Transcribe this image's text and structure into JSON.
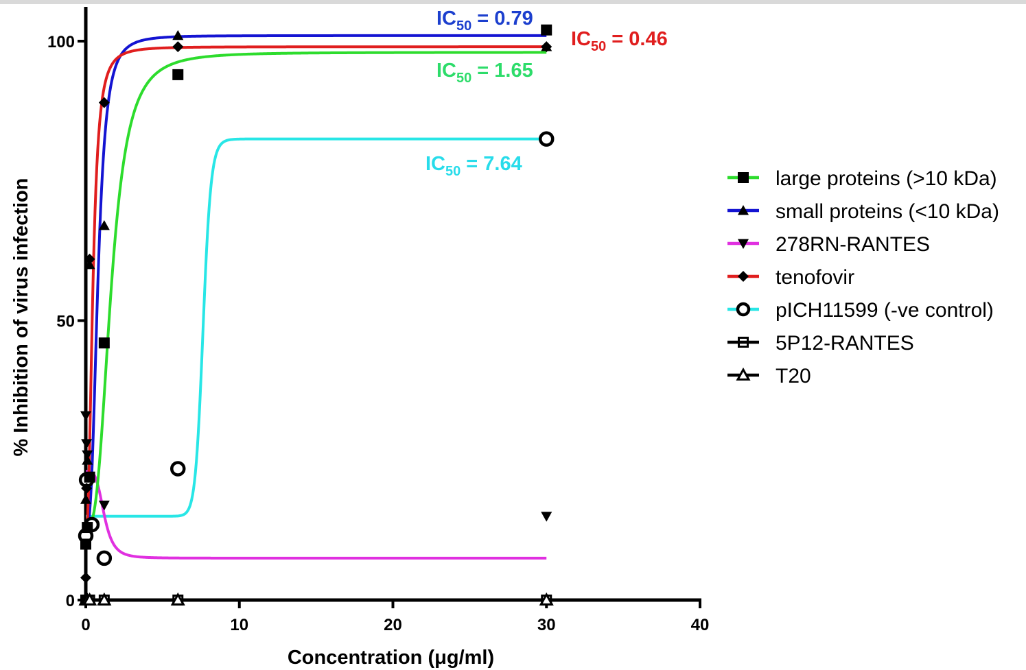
{
  "chart_data": {
    "type": "scatter",
    "title": "",
    "xlabel": "Concentration (μg/ml)",
    "ylabel": "% Inhibition of virus infection",
    "xlim": [
      0,
      40
    ],
    "ylim": [
      0,
      100
    ],
    "xticks": [
      0,
      10,
      20,
      30,
      40
    ],
    "yticks": [
      0,
      50,
      100
    ],
    "grid": false,
    "legend_position": "right",
    "series": [
      {
        "name": "large proteins (>10 kDa)",
        "marker": "filled-square",
        "color": "#2ddc2d",
        "x": [
          0,
          0.1,
          0.25,
          1.2,
          6,
          30
        ],
        "y": [
          10,
          13,
          22,
          46,
          94,
          102
        ],
        "curve": {
          "bottom": 13,
          "top": 98,
          "ic50": 1.65,
          "hill": 3
        }
      },
      {
        "name": "small proteins (<10 kDa)",
        "marker": "filled-triangle-up",
        "color": "#1414d2",
        "x": [
          0,
          0.1,
          0.25,
          1.2,
          6,
          30
        ],
        "y": [
          18,
          25,
          60,
          67,
          101,
          99
        ],
        "curve": {
          "bottom": 13,
          "top": 101,
          "ic50": 0.79,
          "hill": 3
        }
      },
      {
        "name": "278RN-RANTES",
        "marker": "filled-triangle-down",
        "color": "#e030e0",
        "x": [
          0,
          0.05,
          0.1,
          1.2,
          30
        ],
        "y": [
          33,
          28,
          26,
          17,
          15
        ],
        "curve": {
          "bottom": 7.5,
          "top": 23,
          "ic50": 1.2,
          "hill": -4
        }
      },
      {
        "name": "tenofovir",
        "marker": "filled-diamond",
        "color": "#e01e1e",
        "x": [
          0,
          0.05,
          0.25,
          1.2,
          6,
          30
        ],
        "y": [
          4,
          20,
          61,
          89,
          99,
          99
        ],
        "curve": {
          "bottom": 12,
          "top": 99,
          "ic50": 0.46,
          "hill": 2.5
        }
      },
      {
        "name": "pICH11599 (-ve control)",
        "marker": "open-circle",
        "color": "#28e6e6",
        "x": [
          0,
          0.05,
          0.4,
          1.2,
          6,
          30
        ],
        "y": [
          11.5,
          21.5,
          13.5,
          7.5,
          23.5,
          82.5
        ],
        "curve": {
          "bottom": 15,
          "top": 82.5,
          "ic50": 7.64,
          "hill": 30
        }
      },
      {
        "name": "5P12-RANTES",
        "marker": "open-square",
        "color": "#000000",
        "x": [
          0,
          0.1,
          0.25,
          1.2,
          6,
          30
        ],
        "y": [
          0,
          0,
          0,
          0,
          0,
          0
        ]
      },
      {
        "name": "T20",
        "marker": "open-triangle-up",
        "color": "#000000",
        "x": [
          0,
          0.1,
          0.25,
          1.2,
          6,
          30
        ],
        "y": [
          0,
          0,
          0,
          0,
          0,
          0
        ]
      }
    ],
    "annotations": [
      {
        "label": "IC",
        "sub": "50",
        "value": " = 0.79",
        "color": "#1c3fce"
      },
      {
        "label": "IC",
        "sub": "50",
        "value": " = 0.46",
        "color": "#e01e1e"
      },
      {
        "label": "IC",
        "sub": "50",
        "value": " = 1.65",
        "color": "#2ddc6a"
      },
      {
        "label": "IC",
        "sub": "50",
        "value": " = 7.64",
        "color": "#28dcea"
      }
    ]
  }
}
